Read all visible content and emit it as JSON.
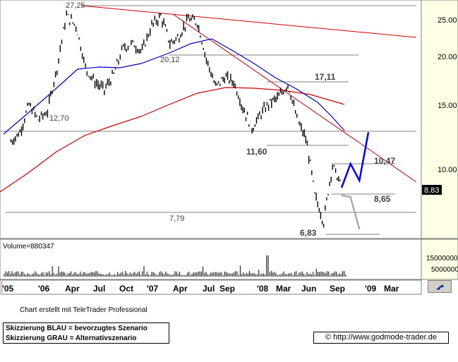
{
  "chart_data": {
    "type": "candlestick",
    "y_ticks": [
      "25.00",
      "20.00",
      "15.00",
      "10.00"
    ],
    "x_ticks": [
      "'05",
      "'06",
      "Apr",
      "Jul",
      "Oct",
      "'07",
      "Apr",
      "Jul",
      "Sep",
      "'08",
      "Mar",
      "Jun",
      "Sep",
      "'09",
      "Mar"
    ],
    "annotations": [
      "27,25",
      "20,12",
      "12,70",
      "17,11",
      "11,60",
      "10,47",
      "8,65",
      "7,79",
      "6,83"
    ],
    "last_value": "8.83",
    "volume_label": "Volume=880347",
    "volume_ticks": [
      "15000000",
      "5000000"
    ],
    "price_series": [
      {
        "t": "2005-10",
        "v": 11.8
      },
      {
        "t": "2005-11",
        "v": 12.5
      },
      {
        "t": "2005-12",
        "v": 14.8
      },
      {
        "t": "2006-01",
        "v": 13.5
      },
      {
        "t": "2006-02",
        "v": 14.2
      },
      {
        "t": "2006-03",
        "v": 18.5
      },
      {
        "t": "2006-04",
        "v": 25.5
      },
      {
        "t": "2006-05",
        "v": 24.0
      },
      {
        "t": "2006-06",
        "v": 18.5
      },
      {
        "t": "2006-07",
        "v": 17.0
      },
      {
        "t": "2006-08",
        "v": 16.2
      },
      {
        "t": "2006-09",
        "v": 17.8
      },
      {
        "t": "2006-10",
        "v": 21.0
      },
      {
        "t": "2006-11",
        "v": 21.5
      },
      {
        "t": "2006-12",
        "v": 20.5
      },
      {
        "t": "2007-01",
        "v": 24.0
      },
      {
        "t": "2007-02",
        "v": 25.5
      },
      {
        "t": "2007-03",
        "v": 21.5
      },
      {
        "t": "2007-04",
        "v": 22.5
      },
      {
        "t": "2007-05",
        "v": 25.0
      },
      {
        "t": "2007-06",
        "v": 24.5
      },
      {
        "t": "2007-07",
        "v": 19.5
      },
      {
        "t": "2007-08",
        "v": 16.5
      },
      {
        "t": "2007-09",
        "v": 17.5
      },
      {
        "t": "2007-10",
        "v": 17.0
      },
      {
        "t": "2007-11",
        "v": 14.5
      },
      {
        "t": "2007-12",
        "v": 12.8
      },
      {
        "t": "2008-01",
        "v": 14.0
      },
      {
        "t": "2008-02",
        "v": 15.0
      },
      {
        "t": "2008-03",
        "v": 15.5
      },
      {
        "t": "2008-04",
        "v": 16.8
      },
      {
        "t": "2008-05",
        "v": 13.5
      },
      {
        "t": "2008-06",
        "v": 12.0
      },
      {
        "t": "2008-07",
        "v": 8.5
      },
      {
        "t": "2008-08",
        "v": 7.2
      },
      {
        "t": "2008-09",
        "v": 10.2
      },
      {
        "t": "2008-10",
        "v": 8.9
      }
    ],
    "scenario_blue": [
      {
        "t": "2008-10",
        "v": 8.9
      },
      {
        "t": "2008-11",
        "v": 10.3
      },
      {
        "t": "2008-12",
        "v": 9.3
      },
      {
        "t": "2009-01",
        "v": 12.5
      }
    ],
    "scenario_grey": [
      {
        "t": "2008-10",
        "v": 8.5
      },
      {
        "t": "2008-11",
        "v": 8.4
      },
      {
        "t": "2008-12",
        "v": 6.9
      }
    ],
    "colors": {
      "price": "#000000",
      "ma_blue": "#0000cc",
      "ma_red": "#cc0000",
      "trend": "#cc0000",
      "blue_scenario": "#0000ff",
      "grey_scenario": "#aaaaaa"
    }
  },
  "footer": {
    "credit": "Chart erstellt mit TeleTrader Professional",
    "legend_blue": "Skizzierung BLAU = bevorzugtes Szenario",
    "legend_grey": "Skizzierung GRAU = Alternativszenario",
    "url": "http://www.godmode-trader.de",
    "url_icon": "©"
  }
}
